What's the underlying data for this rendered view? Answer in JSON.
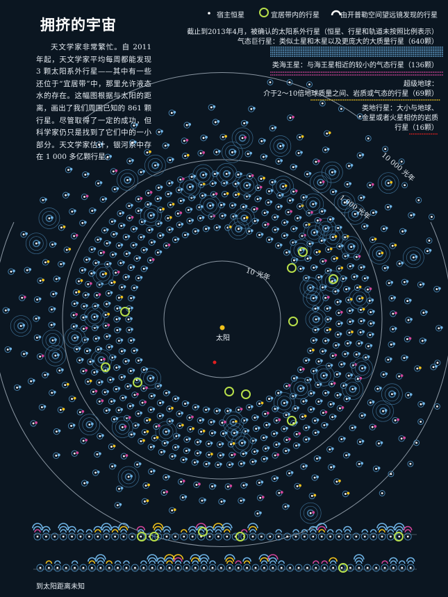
{
  "title": "拥挤的宇宙",
  "intro": "天文学家非常繁忙。自 2011 年起，天文学家平均每周都能发现 3 颗太阳系外行星——其中有一些还位于“宜居带”中，那里允许液态水的存在。这幅图根据与太阳的距离，画出了我们周围已知的 861 颗行星。尽管取得了一定的成功，但科学家仍只是找到了它们中的一小部分。天文学家估计，银河系中存在 1 000 多亿颗行星。",
  "legend": {
    "host_star": "宿主恒星",
    "habitable": "宜居带内的行星",
    "hubble": "由开普勒空间望远镜发现的行星"
  },
  "note": "截止到2013年4月，被确认的太阳系外行星（恒星、行星和轨道未按照比例表示）",
  "categories": [
    {
      "label": "气态巨行星：类似土星和木星以及更庞大的大质量行星（640颗）",
      "color": "#6fb4e6",
      "count": 640
    },
    {
      "label": "类海王星：与海王星相近的较小的气态行星（136颗）",
      "color": "#d4459b",
      "count": 136
    },
    {
      "label_lines": [
        "超级地球：",
        "介于2～10倍地球质量之间、岩质或气态的行星（69颗）"
      ],
      "color": "#f1c21b",
      "count": 69
    },
    {
      "label_lines": [
        "类地行星：大小与地球、",
        "金星或者火星相仿的岩质",
        "行星（16颗）"
      ],
      "color": "#e02020",
      "count": 16
    }
  ],
  "rings": {
    "r10": "10 光年",
    "r1000": "1 000 光年",
    "r10000": "10 000 光年"
  },
  "sun": "太阳",
  "unknown_distance": "到太阳距离未知",
  "colors": {
    "bg": "#0b1621",
    "gas": "#6fb4e6",
    "neptune": "#d4459b",
    "super": "#f1c21b",
    "terra": "#e02020",
    "habitable": "#b8e04a",
    "star": "#ffffff"
  }
}
